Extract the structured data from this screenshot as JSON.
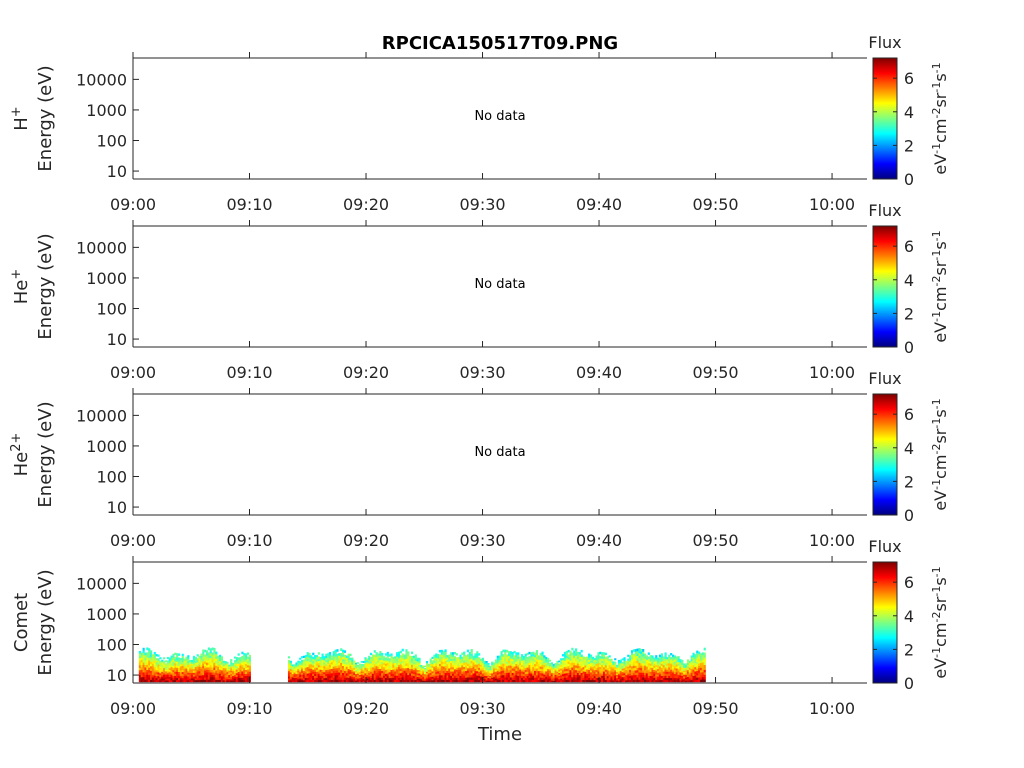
{
  "chart_data": {
    "type": "heatmap",
    "title": "RPCICA150517T09.PNG",
    "xlabel": "Time",
    "x_ticks": [
      "09:00",
      "09:10",
      "09:20",
      "09:30",
      "09:40",
      "09:50",
      "10:00"
    ],
    "x_range_minutes": [
      0,
      63
    ],
    "y_scale": "log",
    "y_ticks": [
      "10",
      "100",
      "1000",
      "10000"
    ],
    "y_range_eV": [
      5.5,
      50000
    ],
    "colorbar": {
      "title": "Flux",
      "ticks": [
        "0",
        "2",
        "4",
        "6"
      ],
      "range": [
        0,
        7.2
      ],
      "unit_parts": [
        "eV",
        "-1",
        "cm",
        "-2",
        "sr",
        "-1",
        "s",
        "-1"
      ],
      "colors": [
        "#00007f",
        "#0000ff",
        "#007fff",
        "#00ffff",
        "#7fff7f",
        "#ffff00",
        "#ff7f00",
        "#ff0000",
        "#7f0000"
      ]
    },
    "panels": [
      {
        "ylabel_species": "H",
        "ylabel_sup": "+",
        "ylabel_unit": "Energy (eV)",
        "status": "No data",
        "has_data": false
      },
      {
        "ylabel_species": "He",
        "ylabel_sup": "+",
        "ylabel_unit": "Energy (eV)",
        "status": "No data",
        "has_data": false
      },
      {
        "ylabel_species": "He",
        "ylabel_sup": "2+",
        "ylabel_unit": "Energy (eV)",
        "status": "No data",
        "has_data": false
      },
      {
        "ylabel_species": "Comet",
        "ylabel_sup": "",
        "ylabel_unit": "Energy (eV)",
        "status": "",
        "has_data": true,
        "data_time_range_minutes": [
          0.5,
          49
        ],
        "data_energy_range_eV": [
          6,
          80
        ],
        "gaps_minutes": [
          [
            10,
            13.2
          ]
        ]
      }
    ]
  }
}
